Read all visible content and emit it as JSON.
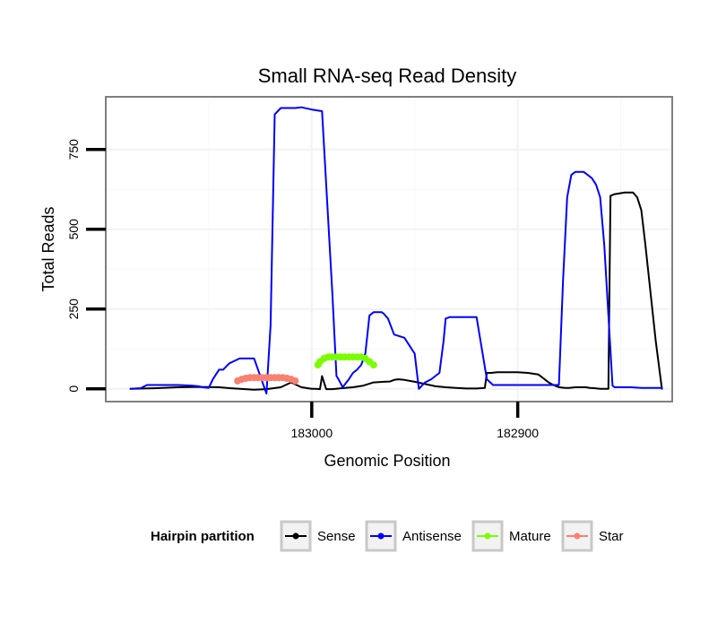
{
  "chart_data": {
    "type": "line",
    "title": "Small RNA-seq Read Density",
    "xlabel": "Genomic Position",
    "ylabel": "Total Reads",
    "x_reversed": true,
    "xlim": [
      183100,
      182825
    ],
    "ylim": [
      -40,
      915
    ],
    "x_ticks": [
      {
        "value": 183000,
        "label": "183000"
      },
      {
        "value": 182900,
        "label": "182900"
      }
    ],
    "y_ticks": [
      {
        "value": 0,
        "label": "0"
      },
      {
        "value": 250,
        "label": "250"
      },
      {
        "value": 500,
        "label": "500"
      },
      {
        "value": 750,
        "label": "750"
      }
    ],
    "grid": true,
    "legend": {
      "title": "Hairpin partition",
      "position": "bottom",
      "entries": [
        {
          "name": "Sense",
          "color": "#000000"
        },
        {
          "name": "Antisense",
          "color": "#0000ff"
        },
        {
          "name": "Mature",
          "color": "#7cfc00"
        },
        {
          "name": "Star",
          "color": "#fa8072"
        }
      ]
    },
    "series": [
      {
        "name": "Sense",
        "color": "#000000",
        "markers": false,
        "x": [
          183088,
          183075,
          183065,
          183055,
          183045,
          183040,
          183035,
          183028,
          183022,
          183015,
          183010,
          183005,
          183000,
          182998,
          182996,
          182995,
          182993,
          182990,
          182985,
          182980,
          182975,
          182970,
          182965,
          182962,
          182960,
          182958,
          182955,
          182950,
          182945,
          182940,
          182935,
          182930,
          182925,
          182920,
          182916,
          182915,
          182913,
          182910,
          182905,
          182900,
          182895,
          182890,
          182885,
          182882,
          182880,
          182877,
          182875,
          182872,
          182870,
          182867,
          182865,
          182863,
          182860,
          182858,
          182856,
          182855,
          182853,
          182848,
          182847,
          182846,
          182844,
          182842,
          182840,
          182838,
          182836,
          182833,
          182830
        ],
        "y": [
          0,
          2,
          5,
          6,
          5,
          2,
          0,
          -3,
          -1,
          5,
          20,
          5,
          0,
          0,
          -1,
          40,
          -1,
          -1,
          2,
          5,
          10,
          20,
          22,
          23,
          28,
          30,
          28,
          22,
          15,
          8,
          5,
          3,
          1,
          1,
          3,
          50,
          50,
          52,
          52,
          52,
          50,
          45,
          20,
          10,
          5,
          3,
          3,
          5,
          5,
          5,
          3,
          2,
          0,
          0,
          0,
          605,
          610,
          615,
          615,
          615,
          615,
          600,
          560,
          450,
          330,
          150,
          0
        ]
      },
      {
        "name": "Antisense",
        "color": "#0000ff",
        "markers": false,
        "x": [
          183088,
          183083,
          183080,
          183075,
          183065,
          183058,
          183055,
          183053,
          183050,
          183048,
          183045,
          183043,
          183040,
          183035,
          183030,
          183028,
          183022,
          183020,
          183018,
          183015,
          183013,
          183010,
          183008,
          183005,
          183000,
          182995,
          182990,
          182988,
          182987,
          182985,
          182982,
          182980,
          182978,
          182976,
          182974,
          182972,
          182970,
          182968,
          182966,
          182965,
          182963,
          182960,
          182955,
          182950,
          182948,
          182945,
          182942,
          182940,
          182938,
          182936,
          182935,
          182933,
          182930,
          182928,
          182925,
          182920,
          182915,
          182912,
          182908,
          182906,
          182903,
          182900,
          182895,
          182890,
          182885,
          182882,
          182880,
          182878,
          182876,
          182874,
          182872,
          182870,
          182868,
          182866,
          182864,
          182862,
          182860,
          182858,
          182854,
          182853,
          182850,
          182845,
          182840,
          182835,
          182830
        ],
        "y": [
          0,
          2,
          12,
          12,
          12,
          10,
          8,
          5,
          3,
          30,
          60,
          60,
          80,
          95,
          95,
          95,
          -15,
          200,
          860,
          880,
          880,
          880,
          880,
          882,
          875,
          870,
          300,
          40,
          30,
          5,
          30,
          50,
          60,
          75,
          110,
          230,
          240,
          240,
          240,
          235,
          220,
          170,
          160,
          110,
          0,
          20,
          30,
          40,
          50,
          150,
          220,
          225,
          225,
          225,
          225,
          225,
          30,
          12,
          12,
          12,
          12,
          12,
          12,
          12,
          12,
          12,
          12,
          340,
          600,
          670,
          680,
          680,
          680,
          670,
          660,
          640,
          600,
          450,
          10,
          5,
          5,
          5,
          3,
          3,
          3
        ]
      },
      {
        "name": "Mature",
        "color": "#7cfc00",
        "markers": true,
        "x": [
          182997,
          182996,
          182994,
          182992,
          182990,
          182988,
          182986,
          182984,
          182982,
          182980,
          182978,
          182976,
          182974,
          182972,
          182970
        ],
        "y": [
          75,
          85,
          95,
          100,
          100,
          100,
          100,
          100,
          100,
          100,
          100,
          100,
          95,
          85,
          75
        ]
      },
      {
        "name": "Star",
        "color": "#fa8072",
        "markers": true,
        "x": [
          183036,
          183034,
          183032,
          183030,
          183028,
          183026,
          183024,
          183022,
          183020,
          183018,
          183016,
          183014,
          183012,
          183010,
          183008
        ],
        "y": [
          25,
          30,
          33,
          35,
          35,
          35,
          35,
          35,
          35,
          35,
          35,
          35,
          33,
          30,
          25
        ]
      }
    ]
  }
}
